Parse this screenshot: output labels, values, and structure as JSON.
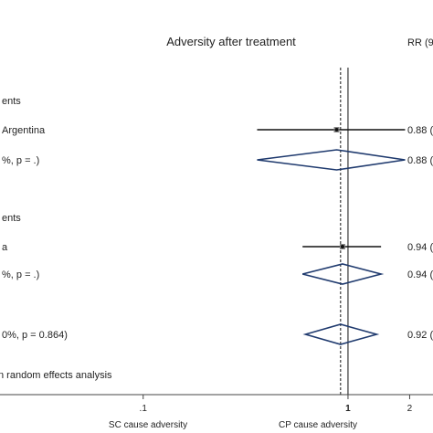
{
  "chart_data": {
    "type": "forest",
    "title": "Adversity after treatment",
    "effect_header": "RR (9",
    "scale": "log",
    "xlim": [
      0.02,
      2.6
    ],
    "x_ticks": [
      {
        "value": 0.1,
        "label": ".1"
      },
      {
        "value": 1,
        "label": "1"
      },
      {
        "value": 2,
        "label": "2"
      }
    ],
    "x_labels": {
      "left": "SC cause adversity",
      "right": "CP cause adversity"
    },
    "overall_reference": 0.92,
    "rows": [
      {
        "kind": "header",
        "label": "ents"
      },
      {
        "kind": "study",
        "label": "Argentina",
        "est": 0.88,
        "lo": 0.36,
        "hi": 1.9,
        "effect_text": "0.88 ("
      },
      {
        "kind": "subtotal",
        "label": "%, p = .)",
        "est": 0.88,
        "lo": 0.36,
        "hi": 1.9,
        "effect_text": "0.88 ("
      },
      {
        "kind": "header",
        "label": "ents"
      },
      {
        "kind": "study",
        "label": "a",
        "est": 0.94,
        "lo": 0.6,
        "hi": 1.45,
        "effect_text": "0.94 ("
      },
      {
        "kind": "subtotal",
        "label": "%, p = .)",
        "est": 0.94,
        "lo": 0.6,
        "hi": 1.45,
        "effect_text": "0.94 ("
      },
      {
        "kind": "overall",
        "label": "0%, p = 0.864)",
        "est": 0.92,
        "lo": 0.62,
        "hi": 1.38,
        "effect_text": "0.92 ("
      }
    ],
    "footnote": "n random effects analysis",
    "colors": {
      "diamond": "#1f3a6e",
      "line": "#111111",
      "text": "#222222",
      "axis": "#444444"
    }
  }
}
